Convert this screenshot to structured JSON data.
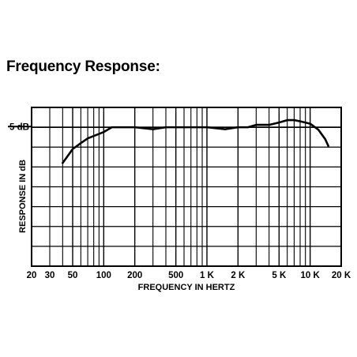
{
  "title": "Frequency Response:",
  "chart_data": {
    "type": "line",
    "title": "Frequency Response:",
    "xlabel": "FREQUENCY IN HERTZ",
    "ylabel": "RESPONSE IN dB",
    "x_scale": "log",
    "xlim": [
      20,
      20000
    ],
    "ylim": [
      -35,
      5
    ],
    "y_reference_label": "5 dB",
    "y_reference_value": 0,
    "x_ticks": [
      20,
      30,
      50,
      100,
      200,
      500,
      1000,
      2000,
      5000,
      10000,
      20000
    ],
    "x_tick_labels": [
      "20",
      "30",
      "50",
      "100",
      "200",
      "500",
      "1 K",
      "2 K",
      "5 K",
      "10 K",
      "20 K"
    ],
    "grid": true,
    "series": [
      {
        "x": [
          40,
          50,
          60,
          70,
          80,
          100,
          120,
          140,
          150,
          200,
          300,
          400,
          500,
          700,
          1000,
          1500,
          2000,
          2500,
          3000,
          4000,
          5000,
          6000,
          7000,
          8000,
          10000,
          12000,
          14000,
          15000
        ],
        "y": [
          -9,
          -5.5,
          -4,
          -2.8,
          -2.2,
          -1.2,
          0,
          0,
          0,
          0,
          -0.5,
          0,
          0,
          0,
          0,
          -0.5,
          0,
          0,
          0.6,
          0.6,
          1.2,
          1.8,
          1.8,
          1.5,
          0.9,
          -0.6,
          -3,
          -4.7
        ]
      }
    ]
  }
}
